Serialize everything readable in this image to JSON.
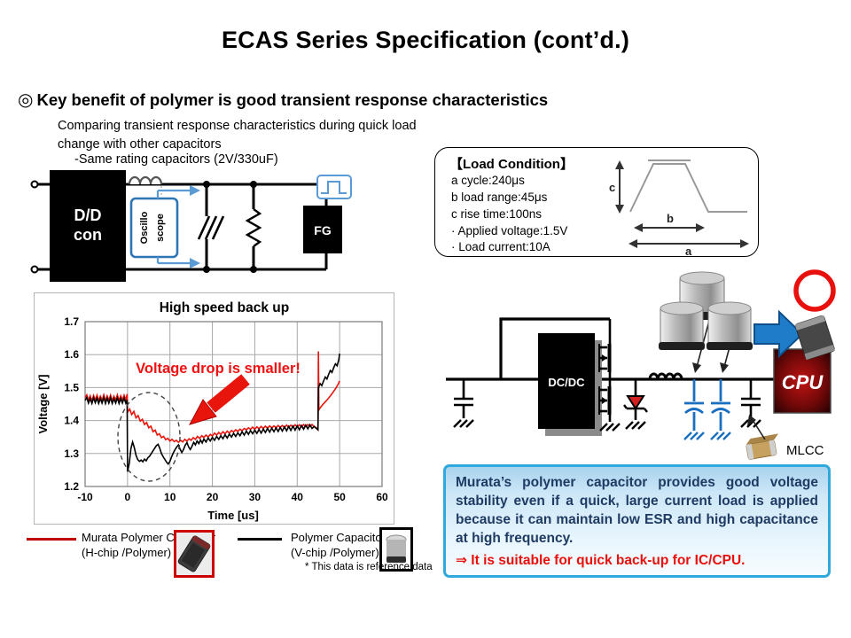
{
  "title": "ECAS Series Specification (cont’d.)",
  "key_benefit": {
    "bullet": "◎",
    "text": "Key benefit of polymer is good transient response characteristics",
    "sub1": "Comparing transient response characteristics during quick load",
    "sub2": "change with other capacitors",
    "sub3": "-Same rating capacitors (2V/330uF)"
  },
  "test_circuit": {
    "dd_con_line1": "D/D",
    "dd_con_line2": "con",
    "oscilloscope_line1": "Oscillo",
    "oscilloscope_line2": "scope",
    "fg": "FG"
  },
  "load_condition": {
    "title": "【Load Condition】",
    "items": [
      "a cycle:240μs",
      "b load range:45μs",
      "c rise time:100ns",
      "· Applied voltage:1.5V",
      "· Load current:10A"
    ],
    "label_a": "a",
    "label_b": "b",
    "label_c": "c"
  },
  "chart_data": {
    "type": "line",
    "title": "High speed back up",
    "xlabel": "Time [us]",
    "ylabel": "Voltage [V]",
    "xlim": [
      -10,
      60
    ],
    "ylim": [
      1.2,
      1.7
    ],
    "x_ticks": [
      -10,
      0,
      10,
      20,
      30,
      40,
      50,
      60
    ],
    "y_ticks": [
      1.2,
      1.3,
      1.4,
      1.5,
      1.6,
      1.7
    ],
    "grid": true,
    "legend_position": "below",
    "annotation": "Voltage  drop is smaller!",
    "series": [
      {
        "name": "Murata Polymer Capacitor (H-chip /Polymer)",
        "color": "#e8150d",
        "points": [
          [
            -10,
            1.47
          ],
          [
            -9.6,
            1.478
          ],
          [
            -9.2,
            1.461
          ],
          [
            -8.8,
            1.475
          ],
          [
            -8.4,
            1.46
          ],
          [
            -8,
            1.476
          ],
          [
            -7.6,
            1.462
          ],
          [
            -7.2,
            1.477
          ],
          [
            -6.8,
            1.461
          ],
          [
            -6.4,
            1.474
          ],
          [
            -6,
            1.462
          ],
          [
            -5.6,
            1.478
          ],
          [
            -5.2,
            1.46
          ],
          [
            -4.8,
            1.475
          ],
          [
            -4.4,
            1.462
          ],
          [
            -4,
            1.477
          ],
          [
            -3.6,
            1.46
          ],
          [
            -3.2,
            1.474
          ],
          [
            -2.8,
            1.463
          ],
          [
            -2.4,
            1.478
          ],
          [
            -2,
            1.461
          ],
          [
            -1.6,
            1.475
          ],
          [
            -1.2,
            1.462
          ],
          [
            -0.8,
            1.477
          ],
          [
            -0.4,
            1.463
          ],
          [
            -0.1,
            1.48
          ],
          [
            0,
            1.425
          ],
          [
            0.5,
            1.435
          ],
          [
            1,
            1.418
          ],
          [
            1.5,
            1.428
          ],
          [
            2,
            1.408
          ],
          [
            2.5,
            1.415
          ],
          [
            3,
            1.398
          ],
          [
            3.5,
            1.404
          ],
          [
            4,
            1.388
          ],
          [
            4.5,
            1.394
          ],
          [
            5,
            1.378
          ],
          [
            5.5,
            1.383
          ],
          [
            6,
            1.366
          ],
          [
            6.5,
            1.371
          ],
          [
            7,
            1.356
          ],
          [
            7.5,
            1.36
          ],
          [
            8,
            1.348
          ],
          [
            8.5,
            1.352
          ],
          [
            9,
            1.342
          ],
          [
            9.5,
            1.346
          ],
          [
            10,
            1.338
          ],
          [
            10.5,
            1.343
          ],
          [
            11,
            1.336
          ],
          [
            11.5,
            1.34
          ],
          [
            12,
            1.334
          ],
          [
            12.5,
            1.34
          ],
          [
            13,
            1.335
          ],
          [
            13.5,
            1.343
          ],
          [
            14,
            1.337
          ],
          [
            14.5,
            1.345
          ],
          [
            15,
            1.34
          ],
          [
            15.5,
            1.348
          ],
          [
            16,
            1.343
          ],
          [
            16.5,
            1.352
          ],
          [
            17,
            1.346
          ],
          [
            17.5,
            1.354
          ],
          [
            18,
            1.349
          ],
          [
            18.5,
            1.356
          ],
          [
            19,
            1.35
          ],
          [
            19.5,
            1.358
          ],
          [
            20,
            1.353
          ],
          [
            20.5,
            1.362
          ],
          [
            21,
            1.356
          ],
          [
            21.5,
            1.364
          ],
          [
            22,
            1.358
          ],
          [
            22.5,
            1.366
          ],
          [
            23,
            1.36
          ],
          [
            23.5,
            1.368
          ],
          [
            24,
            1.362
          ],
          [
            24.5,
            1.37
          ],
          [
            25,
            1.365
          ],
          [
            25.5,
            1.372
          ],
          [
            26,
            1.367
          ],
          [
            26.5,
            1.374
          ],
          [
            27,
            1.369
          ],
          [
            27.5,
            1.376
          ],
          [
            28,
            1.372
          ],
          [
            28.5,
            1.378
          ],
          [
            29,
            1.373
          ],
          [
            29.5,
            1.38
          ],
          [
            30,
            1.374
          ],
          [
            30.5,
            1.381
          ],
          [
            31,
            1.375
          ],
          [
            31.5,
            1.382
          ],
          [
            32,
            1.376
          ],
          [
            32.5,
            1.383
          ],
          [
            33,
            1.377
          ],
          [
            33.5,
            1.384
          ],
          [
            34,
            1.378
          ],
          [
            34.5,
            1.384
          ],
          [
            35,
            1.378
          ],
          [
            35.5,
            1.385
          ],
          [
            36,
            1.379
          ],
          [
            36.5,
            1.385
          ],
          [
            37,
            1.379
          ],
          [
            37.5,
            1.386
          ],
          [
            38,
            1.38
          ],
          [
            38.5,
            1.386
          ],
          [
            39,
            1.38
          ],
          [
            39.5,
            1.387
          ],
          [
            40,
            1.381
          ],
          [
            40.5,
            1.387
          ],
          [
            41,
            1.381
          ],
          [
            41.5,
            1.388
          ],
          [
            42,
            1.382
          ],
          [
            42.5,
            1.388
          ],
          [
            43,
            1.382
          ],
          [
            43.5,
            1.388
          ],
          [
            44,
            1.382
          ],
          [
            44.5,
            1.378
          ],
          [
            44.9,
            1.372
          ],
          [
            45,
            1.61
          ],
          [
            45.1,
            1.432
          ],
          [
            45.5,
            1.44
          ],
          [
            46,
            1.448
          ],
          [
            46.5,
            1.455
          ],
          [
            47,
            1.462
          ],
          [
            47.5,
            1.47
          ],
          [
            48,
            1.478
          ],
          [
            48.5,
            1.487
          ],
          [
            49,
            1.496
          ],
          [
            49.5,
            1.507
          ],
          [
            50,
            1.52
          ]
        ]
      },
      {
        "name": "Polymer Capacitor (V-chip /Polymer)",
        "color": "#000000",
        "points": [
          [
            -10,
            1.461
          ],
          [
            -9.6,
            1.47
          ],
          [
            -9.2,
            1.453
          ],
          [
            -8.8,
            1.467
          ],
          [
            -8.4,
            1.452
          ],
          [
            -8,
            1.469
          ],
          [
            -7.6,
            1.454
          ],
          [
            -7.2,
            1.468
          ],
          [
            -6.8,
            1.452
          ],
          [
            -6.4,
            1.467
          ],
          [
            -6,
            1.453
          ],
          [
            -5.6,
            1.47
          ],
          [
            -5.2,
            1.452
          ],
          [
            -4.8,
            1.468
          ],
          [
            -4.4,
            1.453
          ],
          [
            -4,
            1.469
          ],
          [
            -3.6,
            1.452
          ],
          [
            -3.2,
            1.466
          ],
          [
            -2.8,
            1.453
          ],
          [
            -2.4,
            1.469
          ],
          [
            -2,
            1.452
          ],
          [
            -1.6,
            1.467
          ],
          [
            -1.2,
            1.453
          ],
          [
            -0.8,
            1.468
          ],
          [
            -0.4,
            1.453
          ],
          [
            -0.1,
            1.462
          ],
          [
            0,
            1.245
          ],
          [
            0.4,
            1.27
          ],
          [
            0.8,
            1.315
          ],
          [
            1.2,
            1.335
          ],
          [
            1.6,
            1.318
          ],
          [
            2,
            1.295
          ],
          [
            2.4,
            1.282
          ],
          [
            2.8,
            1.276
          ],
          [
            3.2,
            1.28
          ],
          [
            3.6,
            1.275
          ],
          [
            4,
            1.283
          ],
          [
            4.4,
            1.278
          ],
          [
            4.8,
            1.287
          ],
          [
            5.2,
            1.292
          ],
          [
            5.6,
            1.3
          ],
          [
            6,
            1.308
          ],
          [
            6.4,
            1.316
          ],
          [
            6.8,
            1.324
          ],
          [
            7.2,
            1.328
          ],
          [
            7.6,
            1.316
          ],
          [
            8,
            1.3
          ],
          [
            8.4,
            1.29
          ],
          [
            8.8,
            1.282
          ],
          [
            9.2,
            1.274
          ],
          [
            9.6,
            1.268
          ],
          [
            10,
            1.276
          ],
          [
            10.4,
            1.29
          ],
          [
            10.8,
            1.302
          ],
          [
            11.2,
            1.312
          ],
          [
            11.6,
            1.32
          ],
          [
            12,
            1.326
          ],
          [
            12.4,
            1.313
          ],
          [
            12.8,
            1.303
          ],
          [
            13.2,
            1.312
          ],
          [
            13.6,
            1.325
          ],
          [
            14,
            1.333
          ],
          [
            14.4,
            1.32
          ],
          [
            14.8,
            1.312
          ],
          [
            15.2,
            1.322
          ],
          [
            15.6,
            1.334
          ],
          [
            16,
            1.326
          ],
          [
            16.4,
            1.338
          ],
          [
            16.8,
            1.33
          ],
          [
            17.2,
            1.341
          ],
          [
            17.6,
            1.332
          ],
          [
            18,
            1.344
          ],
          [
            18.5,
            1.335
          ],
          [
            19,
            1.347
          ],
          [
            19.5,
            1.338
          ],
          [
            20,
            1.349
          ],
          [
            20.5,
            1.34
          ],
          [
            21,
            1.352
          ],
          [
            21.5,
            1.343
          ],
          [
            22,
            1.354
          ],
          [
            22.5,
            1.345
          ],
          [
            23,
            1.357
          ],
          [
            23.5,
            1.347
          ],
          [
            24,
            1.359
          ],
          [
            24.5,
            1.35
          ],
          [
            25,
            1.361
          ],
          [
            25.5,
            1.352
          ],
          [
            26,
            1.363
          ],
          [
            26.5,
            1.354
          ],
          [
            27,
            1.366
          ],
          [
            27.5,
            1.356
          ],
          [
            28,
            1.368
          ],
          [
            28.5,
            1.358
          ],
          [
            29,
            1.37
          ],
          [
            29.5,
            1.36
          ],
          [
            30,
            1.371
          ],
          [
            30.5,
            1.361
          ],
          [
            31,
            1.373
          ],
          [
            31.5,
            1.362
          ],
          [
            32,
            1.374
          ],
          [
            32.5,
            1.364
          ],
          [
            33,
            1.376
          ],
          [
            33.5,
            1.365
          ],
          [
            34,
            1.377
          ],
          [
            34.5,
            1.366
          ],
          [
            35,
            1.378
          ],
          [
            35.5,
            1.367
          ],
          [
            36,
            1.379
          ],
          [
            36.5,
            1.368
          ],
          [
            37,
            1.381
          ],
          [
            37.5,
            1.369
          ],
          [
            38,
            1.382
          ],
          [
            38.5,
            1.37
          ],
          [
            39,
            1.383
          ],
          [
            39.5,
            1.371
          ],
          [
            40,
            1.384
          ],
          [
            40.5,
            1.372
          ],
          [
            41,
            1.385
          ],
          [
            41.5,
            1.374
          ],
          [
            42,
            1.386
          ],
          [
            42.5,
            1.375
          ],
          [
            43,
            1.387
          ],
          [
            43.5,
            1.376
          ],
          [
            44,
            1.382
          ],
          [
            44.5,
            1.376
          ],
          [
            44.9,
            1.372
          ],
          [
            45,
            1.5
          ],
          [
            45.4,
            1.512
          ],
          [
            45.8,
            1.506
          ],
          [
            46.2,
            1.52
          ],
          [
            46.6,
            1.532
          ],
          [
            47,
            1.526
          ],
          [
            47.4,
            1.54
          ],
          [
            47.8,
            1.552
          ],
          [
            48.2,
            1.546
          ],
          [
            48.6,
            1.56
          ],
          [
            49,
            1.572
          ],
          [
            49.4,
            1.566
          ],
          [
            49.8,
            1.585
          ],
          [
            50,
            1.603
          ]
        ]
      }
    ]
  },
  "legend": {
    "item1_line1": "Murata Polymer Capacitor",
    "item1_line2": "(H-chip /Polymer)",
    "item1_color": "#c00000",
    "item2_line1": "Polymer Capacitor",
    "item2_line2": "(V-chip /Polymer)",
    "item2_color": "#000000",
    "note": "* This data is reference data"
  },
  "app_circuit": {
    "dcdc": "DC/DC",
    "cpu": "CPU",
    "mlcc": "MLCC"
  },
  "summary": {
    "text": "Murata’s polymer capacitor provides good voltage stability even if a quick, large current load is applied because it can maintain low ESR and high capacitance at high frequency.",
    "highlight": "⇒ It is suitable for quick back-up for IC/CPU."
  },
  "colors": {
    "accent_red": "#e8100c",
    "circuit_blue": "#2e75b6",
    "cap_blue": "#1a6fc0",
    "summary_border": "#2fa8dc",
    "summary_text": "#1f3b63"
  }
}
